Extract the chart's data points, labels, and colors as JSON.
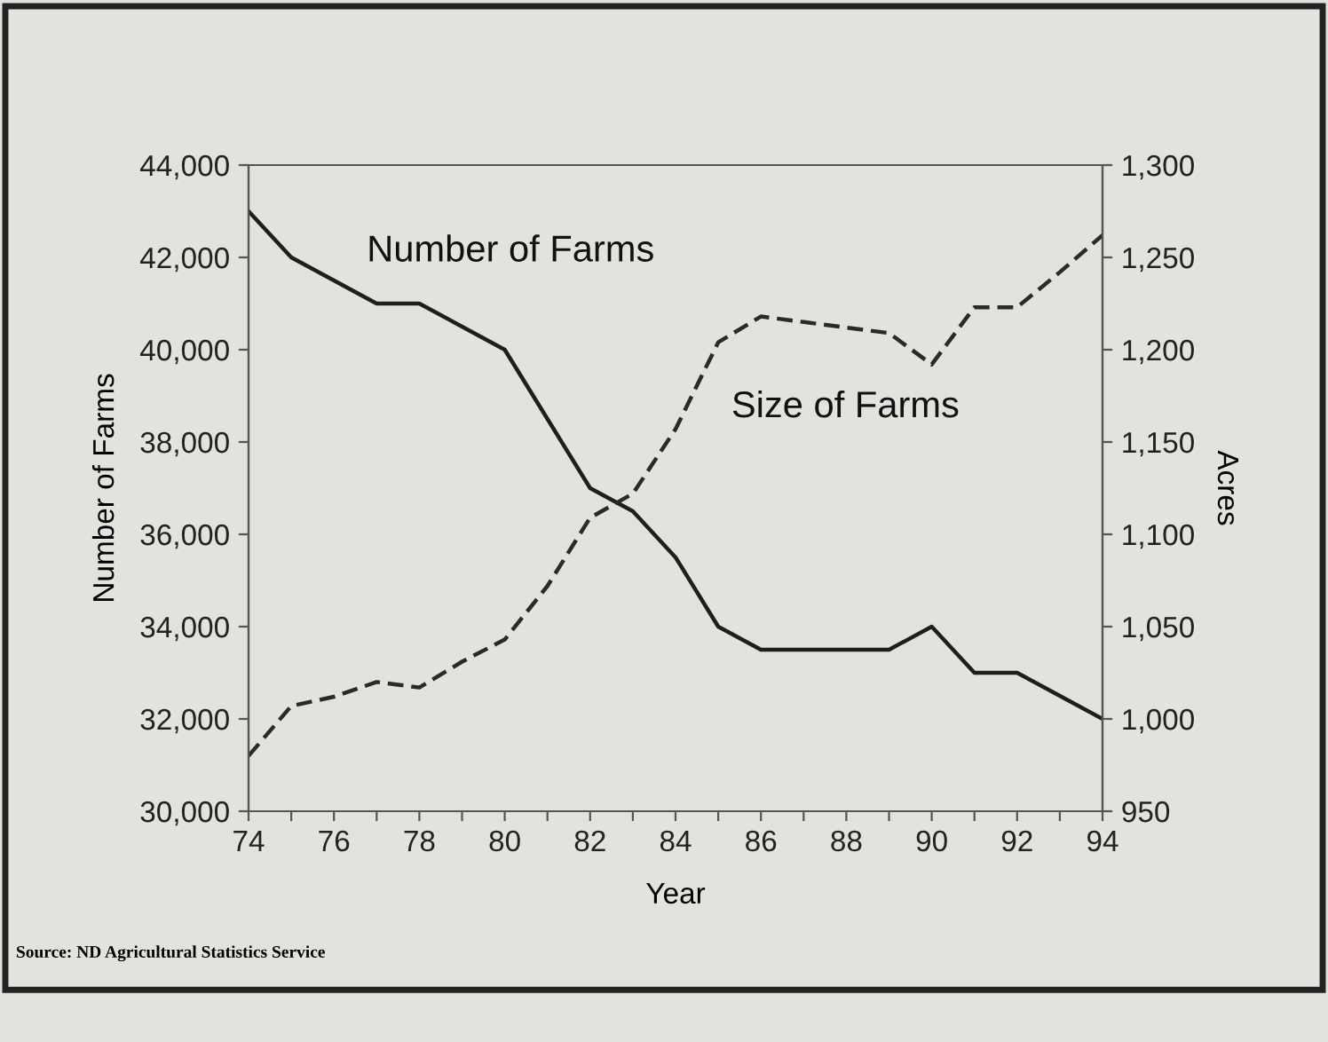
{
  "chart_data": {
    "type": "line",
    "xlabel": "Year",
    "ylabel": "Number of Farms",
    "y2label": "Acres",
    "x": [
      74,
      75,
      76,
      77,
      78,
      79,
      80,
      81,
      82,
      83,
      84,
      85,
      86,
      87,
      88,
      89,
      90,
      91,
      92,
      93,
      94
    ],
    "series": [
      {
        "name": "Number of Farms",
        "color": "#1e1e1e",
        "line_style": "solid",
        "values": [
          43000,
          42000,
          41500,
          41000,
          41000,
          40500,
          40000,
          38500,
          37000,
          36500,
          35500,
          34000,
          33500,
          33500,
          33500,
          33500,
          34000,
          33000,
          33000,
          32500,
          32000
        ]
      },
      {
        "name": "Size of Farms",
        "color": "#2a2a2a",
        "line_style": "dashed",
        "axis": "y2",
        "values": [
          980,
          1007,
          1012,
          1020,
          1017,
          1031,
          1043,
          1072,
          1109,
          1122,
          1157,
          1204,
          1218,
          1215,
          1212,
          1209,
          1192,
          1223,
          1223,
          1242,
          1262
        ]
      }
    ],
    "xlim": [
      74,
      94
    ],
    "xticks": [
      74,
      {
        "value": 75,
        "label": null
      },
      76,
      {
        "value": 77,
        "label": null
      },
      78,
      {
        "value": 79,
        "label": null
      },
      80,
      {
        "value": 81,
        "label": null
      },
      82,
      {
        "value": 83,
        "label": null
      },
      84,
      {
        "value": 85,
        "label": null
      },
      86,
      {
        "value": 87,
        "label": null
      },
      88,
      {
        "value": 89,
        "label": null
      },
      90,
      {
        "value": 91,
        "label": null
      },
      92,
      {
        "value": 93,
        "label": null
      },
      94
    ],
    "ylim": [
      30000,
      44000
    ],
    "yticks": [
      {
        "value": 30000,
        "label": "30,000"
      },
      {
        "value": 32000,
        "label": "32,000"
      },
      {
        "value": 34000,
        "label": "34,000"
      },
      {
        "value": 36000,
        "label": "36,000"
      },
      {
        "value": 38000,
        "label": "38,000"
      },
      {
        "value": 40000,
        "label": "40,000"
      },
      {
        "value": 42000,
        "label": "42,000"
      },
      {
        "value": 44000,
        "label": "44,000"
      }
    ],
    "y2lim": [
      950,
      1300
    ],
    "y2ticks": [
      950,
      {
        "value": 1000,
        "label": "1,000"
      },
      {
        "value": 1050,
        "label": "1,050"
      },
      {
        "value": 1100,
        "label": "1,100"
      },
      {
        "value": 1150,
        "label": "1,150"
      },
      {
        "value": 1200,
        "label": "1,200"
      },
      {
        "value": 1250,
        "label": "1,250"
      },
      {
        "value": 1300,
        "label": "1,300"
      }
    ],
    "grid": false,
    "legend": false,
    "annotations": [
      "Source: ND Agricultural Statistics Service"
    ]
  }
}
